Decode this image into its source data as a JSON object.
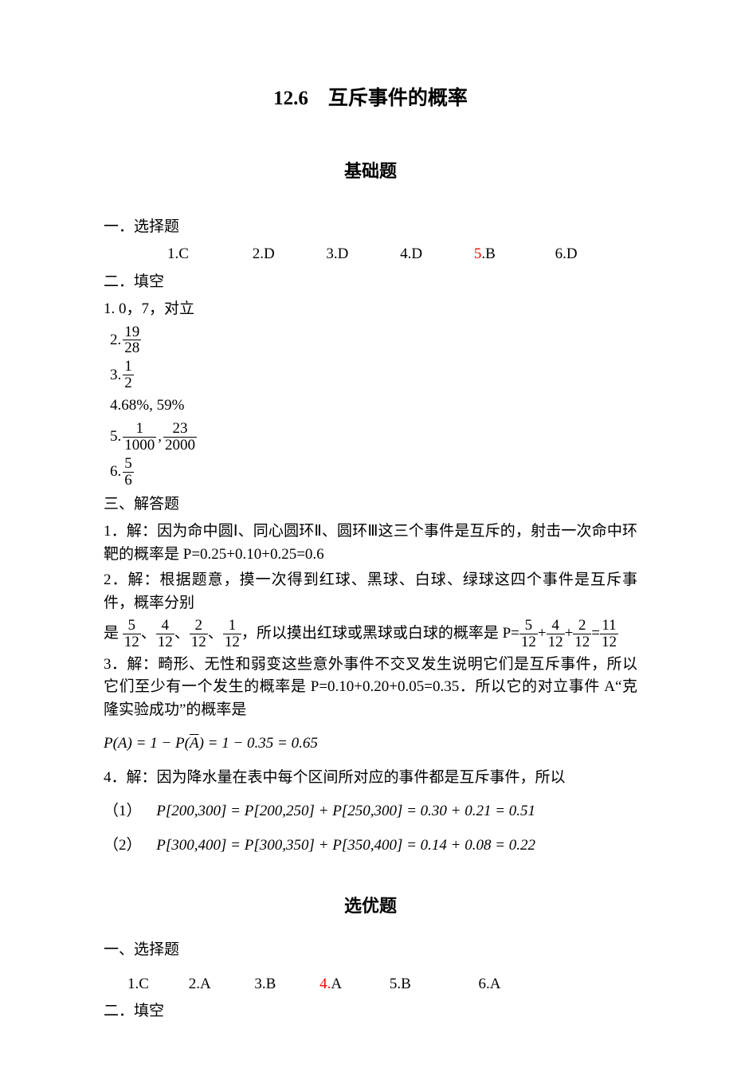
{
  "title": "12.6　互斥事件的概率",
  "part1": {
    "heading": "基础题",
    "s1": {
      "head": "一．选择题",
      "items": [
        {
          "n": "1",
          "a": "C",
          "red": false
        },
        {
          "n": "2",
          "a": "D",
          "red": false
        },
        {
          "n": "3",
          "a": "D",
          "red": false
        },
        {
          "n": "4",
          "a": "D",
          "red": false
        },
        {
          "n": "5",
          "a": "B",
          "red": true
        },
        {
          "n": "6",
          "a": "D",
          "red": false
        }
      ]
    },
    "s2": {
      "head": "二．填空",
      "a1": "1. 0，7，对立",
      "a2": {
        "pre": "2.",
        "num": "19",
        "den": "28"
      },
      "a3": {
        "pre": "3.",
        "num": "1",
        "den": "2"
      },
      "a4": "4.68%, 59%",
      "a5": {
        "pre": "5.",
        "f1n": "1",
        "f1d": "1000",
        "mid": ",",
        "f2n": "23",
        "f2d": "2000"
      },
      "a6": {
        "pre": "6.",
        "num": "5",
        "den": "6"
      }
    },
    "s3": {
      "head": "三、解答题",
      "q1": "1．解：因为命中圆Ⅰ、同心圆环Ⅱ、圆环Ⅲ这三个事件是互斥的，射击一次命中环靶的概率是 P=0.25+0.10+0.25=0.6",
      "q2a": "2．解：根据题意，摸一次得到红球、黑球、白球、绿球这四个事件是互斥事件，概率分别",
      "q2b_pre": "是",
      "q2b_sep": "、",
      "q2b_mid": "，所以摸出红球或黑球或白球的概率是 P=",
      "q2b_plus": "+",
      "q2b_eq": "=",
      "f": {
        "a": {
          "n": "5",
          "d": "12"
        },
        "b": {
          "n": "4",
          "d": "12"
        },
        "c": {
          "n": "2",
          "d": "12"
        },
        "d": {
          "n": "1",
          "d": "12"
        },
        "r": {
          "n": "11",
          "d": "12"
        }
      },
      "q3": "3．解：畸形、无性和弱变这些意外事件不交叉发生说明它们是互斥事件，所以它们至少有一个发生的概率是 P=0.10+0.20+0.05=0.35．所以它的对立事件 A“克隆实验成功”的概率是",
      "q3eq_pre": "P(A) = 1 − P(",
      "q3eq_bar": "A",
      "q3eq_post": ") = 1 − 0.35 = 0.65",
      "q4": "4．解：因为降水量在表中每个区间所对应的事件都是互斥事件，所以",
      "q4a_lead": "（1）",
      "q4a": "P[200,300] = P[200,250] + P[250,300] = 0.30 + 0.21 = 0.51",
      "q4b_lead": "（2）",
      "q4b": "P[300,400] = P[300,350] + P[350,400] = 0.14 + 0.08 = 0.22"
    }
  },
  "part2": {
    "heading": "选优题",
    "s1": {
      "head": "一、选择题",
      "items": [
        {
          "n": "1",
          "a": "C",
          "red": false
        },
        {
          "n": "2",
          "a": "A",
          "red": false
        },
        {
          "n": "3",
          "a": "B",
          "red": false
        },
        {
          "n": "4",
          "a": "A",
          "red": true
        },
        {
          "n": "5",
          "a": "B",
          "red": false
        },
        {
          "n": "6",
          "a": "A",
          "red": false
        }
      ]
    },
    "s2": {
      "head": "二．填空"
    }
  },
  "colors": {
    "text": "#000000",
    "background": "#ffffff",
    "red": "#ff0000"
  },
  "typography": {
    "body_fontsize_pt": 14,
    "title_fontsize_pt": 19,
    "subtitle_fontsize_pt": 17,
    "font_family": "Times New Roman / SimSun"
  }
}
